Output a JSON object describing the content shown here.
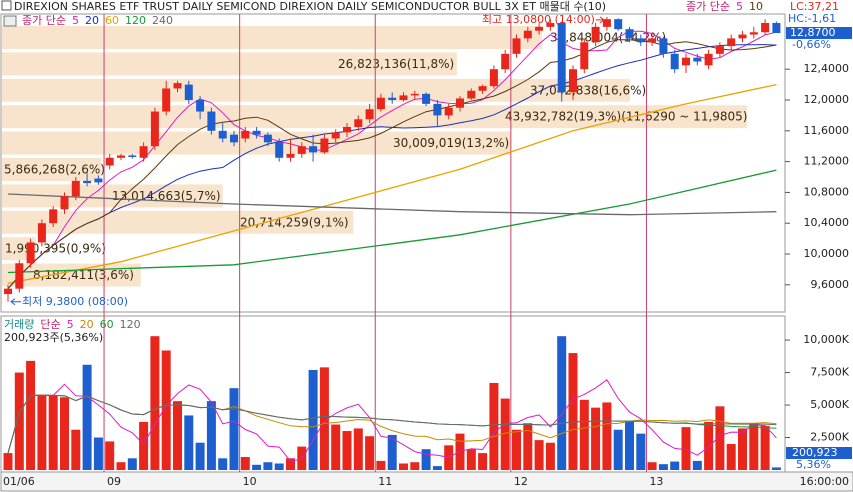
{
  "title": "DIREXION SHARES ETF TRUST DAILY SEMICOND  DIREXION DAILY SEMICONDUCTOR BULL 3X ET 매물대 수(10)",
  "lc": "LC:37,21",
  "hc": "HC:-1,61",
  "chart_data": [
    {
      "type": "candlestick",
      "up_color": "#e8261c",
      "down_color": "#1e5fd0",
      "open": [
        9.48,
        9.55,
        9.88,
        10.15,
        10.4,
        10.58,
        10.75,
        10.95,
        10.98,
        11.15,
        11.25,
        11.28,
        11.25,
        11.4,
        11.85,
        12.15,
        12.2,
        12.0,
        11.85,
        11.6,
        11.55,
        11.5,
        11.6,
        11.55,
        11.45,
        11.25,
        11.3,
        11.4,
        11.32,
        11.5,
        11.58,
        11.65,
        11.75,
        11.88,
        12.03,
        12.0,
        12.06,
        12.08,
        11.95,
        11.8,
        11.9,
        12.02,
        12.12,
        12.18,
        12.4,
        12.6,
        12.8,
        12.9,
        12.95,
        13.0,
        12.1,
        12.4,
        12.75,
        12.95,
        13.05,
        12.92,
        12.8,
        12.75,
        12.8,
        12.6,
        12.45,
        12.55,
        12.45,
        12.6,
        12.7,
        12.8,
        12.85,
        12.88,
        13.0
      ],
      "high": [
        9.6,
        9.92,
        10.2,
        10.45,
        10.62,
        10.8,
        11.0,
        11.05,
        11.02,
        11.3,
        11.3,
        11.3,
        11.45,
        11.9,
        12.25,
        12.25,
        12.25,
        12.05,
        11.9,
        11.7,
        11.6,
        11.65,
        11.65,
        11.58,
        11.5,
        11.5,
        11.45,
        11.55,
        11.55,
        11.62,
        11.7,
        11.8,
        11.95,
        12.08,
        12.1,
        12.1,
        12.12,
        12.1,
        12.0,
        11.95,
        12.05,
        12.15,
        12.2,
        12.45,
        12.65,
        12.85,
        12.95,
        13.0,
        13.05,
        13.02,
        12.45,
        12.8,
        13.0,
        13.08,
        13.06,
        12.95,
        12.85,
        12.85,
        12.82,
        12.65,
        12.6,
        12.6,
        12.65,
        12.75,
        12.85,
        12.9,
        12.95,
        13.05,
        13.02
      ],
      "low": [
        9.38,
        9.5,
        9.82,
        10.1,
        10.35,
        10.52,
        10.7,
        10.88,
        10.9,
        11.1,
        11.22,
        11.24,
        11.2,
        11.35,
        11.8,
        12.1,
        11.95,
        11.75,
        11.55,
        11.45,
        11.4,
        11.45,
        11.5,
        11.4,
        11.2,
        11.2,
        11.25,
        11.2,
        11.3,
        11.45,
        11.52,
        11.6,
        11.7,
        11.85,
        11.95,
        11.98,
        12.0,
        11.92,
        11.65,
        11.75,
        11.85,
        12.0,
        12.08,
        12.15,
        12.35,
        12.55,
        12.75,
        12.85,
        12.9,
        11.98,
        12.0,
        12.35,
        12.7,
        12.9,
        12.9,
        12.75,
        12.7,
        12.7,
        12.55,
        12.35,
        12.35,
        12.45,
        12.4,
        12.55,
        12.65,
        12.75,
        12.8,
        12.85,
        12.87
      ],
      "close": [
        9.55,
        9.88,
        10.15,
        10.4,
        10.58,
        10.75,
        10.95,
        10.92,
        10.93,
        11.25,
        11.28,
        11.26,
        11.4,
        11.85,
        12.15,
        12.22,
        12.0,
        11.85,
        11.6,
        11.5,
        11.45,
        11.6,
        11.55,
        11.45,
        11.25,
        11.3,
        11.4,
        11.32,
        11.5,
        11.58,
        11.65,
        11.75,
        11.88,
        12.03,
        12.0,
        12.06,
        12.08,
        11.95,
        11.8,
        11.9,
        12.02,
        12.12,
        12.18,
        12.4,
        12.6,
        12.8,
        12.9,
        12.95,
        13.0,
        12.1,
        12.4,
        12.75,
        12.95,
        13.05,
        12.92,
        12.8,
        12.75,
        12.8,
        12.6,
        12.4,
        12.55,
        12.5,
        12.6,
        12.7,
        12.8,
        12.85,
        12.88,
        13.0,
        12.87
      ],
      "ylim": [
        9.247,
        13.117
      ],
      "yticks": [
        {
          "value": 9.6,
          "label": "9,6000"
        },
        {
          "value": 10.0,
          "label": "10,0000"
        },
        {
          "value": 10.4,
          "label": "10,4000"
        },
        {
          "value": 10.8,
          "label": "10,8000"
        },
        {
          "value": 11.2,
          "label": "11,2000"
        },
        {
          "value": 11.6,
          "label": "11,6000"
        },
        {
          "value": 12.0,
          "label": "12,0000"
        },
        {
          "value": 12.4,
          "label": "12,4000"
        }
      ],
      "grid": false,
      "legend_label": "종가 단순",
      "series": [
        {
          "name": "5",
          "color": "#d81ec8"
        },
        {
          "name": "20",
          "color": "#1c2fb8"
        },
        {
          "name": "60",
          "color": "#e8a400",
          "x": [
            0,
            10,
            20,
            30,
            40,
            50,
            60,
            68
          ],
          "values": [
            9.62,
            9.9,
            10.3,
            10.7,
            11.1,
            11.6,
            11.95,
            12.2
          ]
        },
        {
          "name": "120",
          "color": "#159a35",
          "x": [
            0,
            20,
            40,
            55,
            68
          ],
          "values": [
            9.76,
            9.86,
            10.25,
            10.65,
            11.09
          ]
        },
        {
          "name": "240",
          "color": "#6a6a6a",
          "x": [
            0,
            20,
            40,
            55,
            68
          ],
          "values": [
            10.78,
            10.65,
            10.55,
            10.51,
            10.55
          ]
        }
      ],
      "overlay": {
        "label": "종가 단순",
        "series": [
          {
            "name": "5",
            "color": "#d81ec8"
          },
          {
            "name": "10",
            "color": "#5a3a10"
          }
        ]
      },
      "high_label": "최고 13,0800 (14:00)",
      "low_label": "최저 9,3800 (08:00)",
      "current_label": "12,8700",
      "change_label": "-0,66%",
      "volume_profile": [
        {
          "value": 31848004,
          "label": "31,848,004(14,2%)"
        },
        {
          "value": 26823136,
          "label": "26,823,136(11,8%)"
        },
        {
          "value": 37042838,
          "label": "37,042,838(16,6%)"
        },
        {
          "value": 43932782,
          "label": "43,932,782(19,3%)(11,6290 ~ 11,9805)"
        },
        {
          "value": 30009019,
          "label": "30,009,019(13,2%)"
        },
        {
          "value": 5866268,
          "label": "5,866,268(2,6%)"
        },
        {
          "value": 13014663,
          "label": "13,014,663(5,7%)"
        },
        {
          "value": 20714259,
          "label": "20,714,259(9,1%)"
        },
        {
          "value": 1990395,
          "label": "1,990,395(0,9%)"
        },
        {
          "value": 8182411,
          "label": "8,182,411(3,6%)"
        }
      ]
    },
    {
      "type": "bar",
      "legend_title": "거래량",
      "legend_label": "단순",
      "series": [
        {
          "name": "5",
          "color": "#d81ec8"
        },
        {
          "name": "20",
          "color": "#c88a00"
        },
        {
          "name": "60",
          "color": "#159a35"
        },
        {
          "name": "120",
          "color": "#6a6a6a"
        }
      ],
      "categories": [
        "01/06",
        null,
        null,
        null,
        null,
        null,
        null,
        null,
        null,
        "09",
        null,
        null,
        null,
        null,
        null,
        null,
        null,
        null,
        null,
        null,
        null,
        "10",
        null,
        null,
        null,
        null,
        null,
        null,
        null,
        null,
        null,
        null,
        null,
        "11",
        null,
        null,
        null,
        null,
        null,
        null,
        null,
        null,
        null,
        null,
        null,
        "12",
        null,
        null,
        null,
        null,
        null,
        null,
        null,
        null,
        null,
        null,
        null,
        "13",
        null,
        null,
        null,
        null,
        null,
        null,
        null,
        null,
        null,
        null,
        null
      ],
      "values": [
        1300,
        7500,
        8400,
        5800,
        5700,
        5600,
        3100,
        8100,
        2500,
        2200,
        600,
        900,
        3700,
        10300,
        9200,
        5300,
        4200,
        2100,
        5300,
        900,
        6300,
        1000,
        400,
        600,
        500,
        900,
        1800,
        7700,
        7900,
        3500,
        3000,
        3200,
        2600,
        700,
        2700,
        500,
        600,
        1600,
        300,
        1900,
        2800,
        1600,
        1300,
        6700,
        5500,
        3100,
        3600,
        2300,
        2100,
        10300,
        9000,
        5400,
        4800,
        5200,
        3100,
        3800,
        2800,
        600,
        450,
        650,
        3300,
        700,
        3700,
        4900,
        2000,
        3200,
        3600,
        3400,
        200.923
      ],
      "ylim": [
        0,
        11700
      ],
      "yticks": [
        {
          "value": 2500,
          "label": "2,500K"
        },
        {
          "value": 5000,
          "label": "5,000K"
        },
        {
          "value": 7500,
          "label": "7,500K"
        },
        {
          "value": 10000,
          "label": "10,000K"
        }
      ],
      "summary": "200,923주(5,36%)",
      "current_label": "200,923",
      "change_label": "5,36%",
      "time_label": "16:00:00"
    }
  ]
}
